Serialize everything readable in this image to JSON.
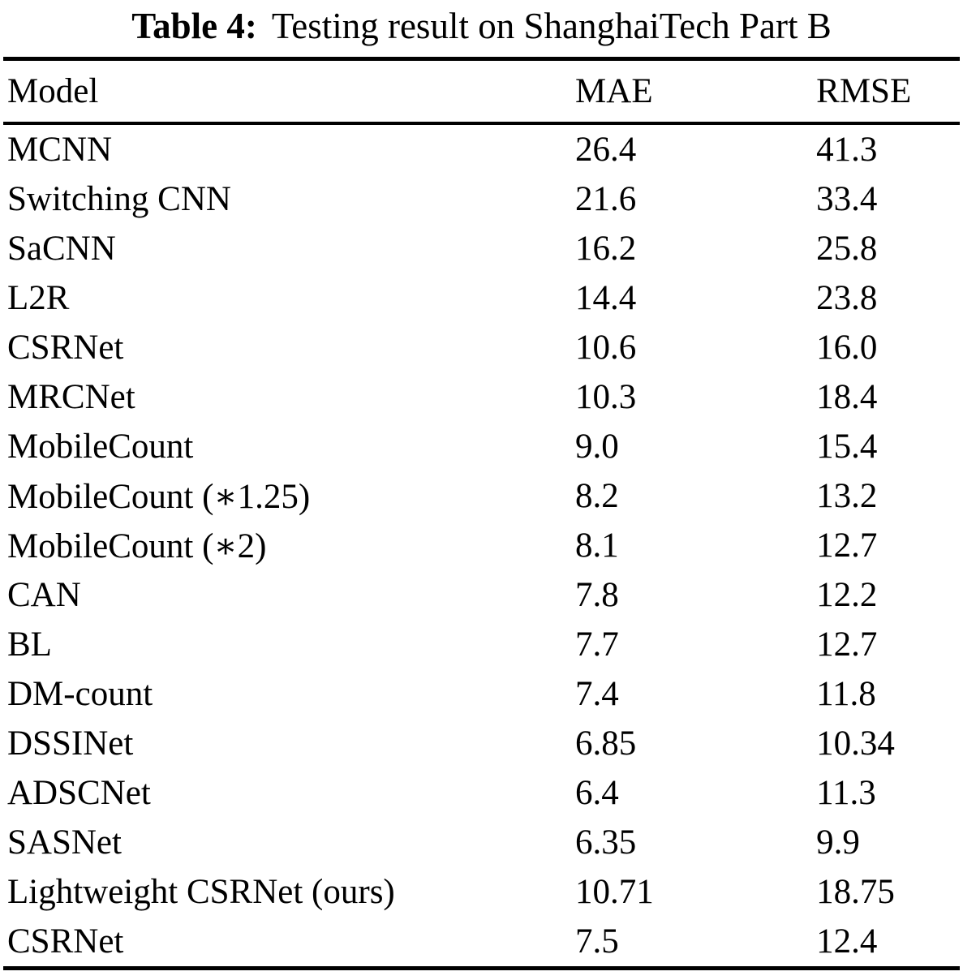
{
  "table": {
    "caption": {
      "label": "Table 4:",
      "text": "Testing result on ShanghaiTech Part B"
    },
    "columns": {
      "model": "Model",
      "mae": "MAE",
      "rmse": "RMSE"
    },
    "rows": [
      {
        "model": "MCNN",
        "mae": "26.4",
        "rmse": "41.3"
      },
      {
        "model": "Switching CNN",
        "mae": "21.6",
        "rmse": "33.4"
      },
      {
        "model": "SaCNN",
        "mae": "16.2",
        "rmse": "25.8"
      },
      {
        "model": "L2R",
        "mae": "14.4",
        "rmse": "23.8"
      },
      {
        "model": "CSRNet",
        "mae": "10.6",
        "rmse": "16.0"
      },
      {
        "model": "MRCNet",
        "mae": "10.3",
        "rmse": "18.4"
      },
      {
        "model": "MobileCount",
        "mae": "9.0",
        "rmse": "15.4"
      },
      {
        "model": "MobileCount (∗1.25)",
        "mae": "8.2",
        "rmse": "13.2"
      },
      {
        "model": "MobileCount (∗2)",
        "mae": "8.1",
        "rmse": "12.7"
      },
      {
        "model": "CAN",
        "mae": "7.8",
        "rmse": "12.2"
      },
      {
        "model": "BL",
        "mae": "7.7",
        "rmse": "12.7"
      },
      {
        "model": "DM-count",
        "mae": "7.4",
        "rmse": "11.8"
      },
      {
        "model": "DSSINet",
        "mae": "6.85",
        "rmse": "10.34"
      },
      {
        "model": "ADSCNet",
        "mae": "6.4",
        "rmse": "11.3"
      },
      {
        "model": "SASNet",
        "mae": "6.35",
        "rmse": "9.9"
      },
      {
        "model": "Lightweight CSRNet (ours)",
        "mae": "10.71",
        "rmse": "18.75"
      },
      {
        "model": "CSRNet",
        "mae": "7.5",
        "rmse": "12.4"
      }
    ],
    "text_color": "#000000",
    "background_color": "#ffffff"
  }
}
